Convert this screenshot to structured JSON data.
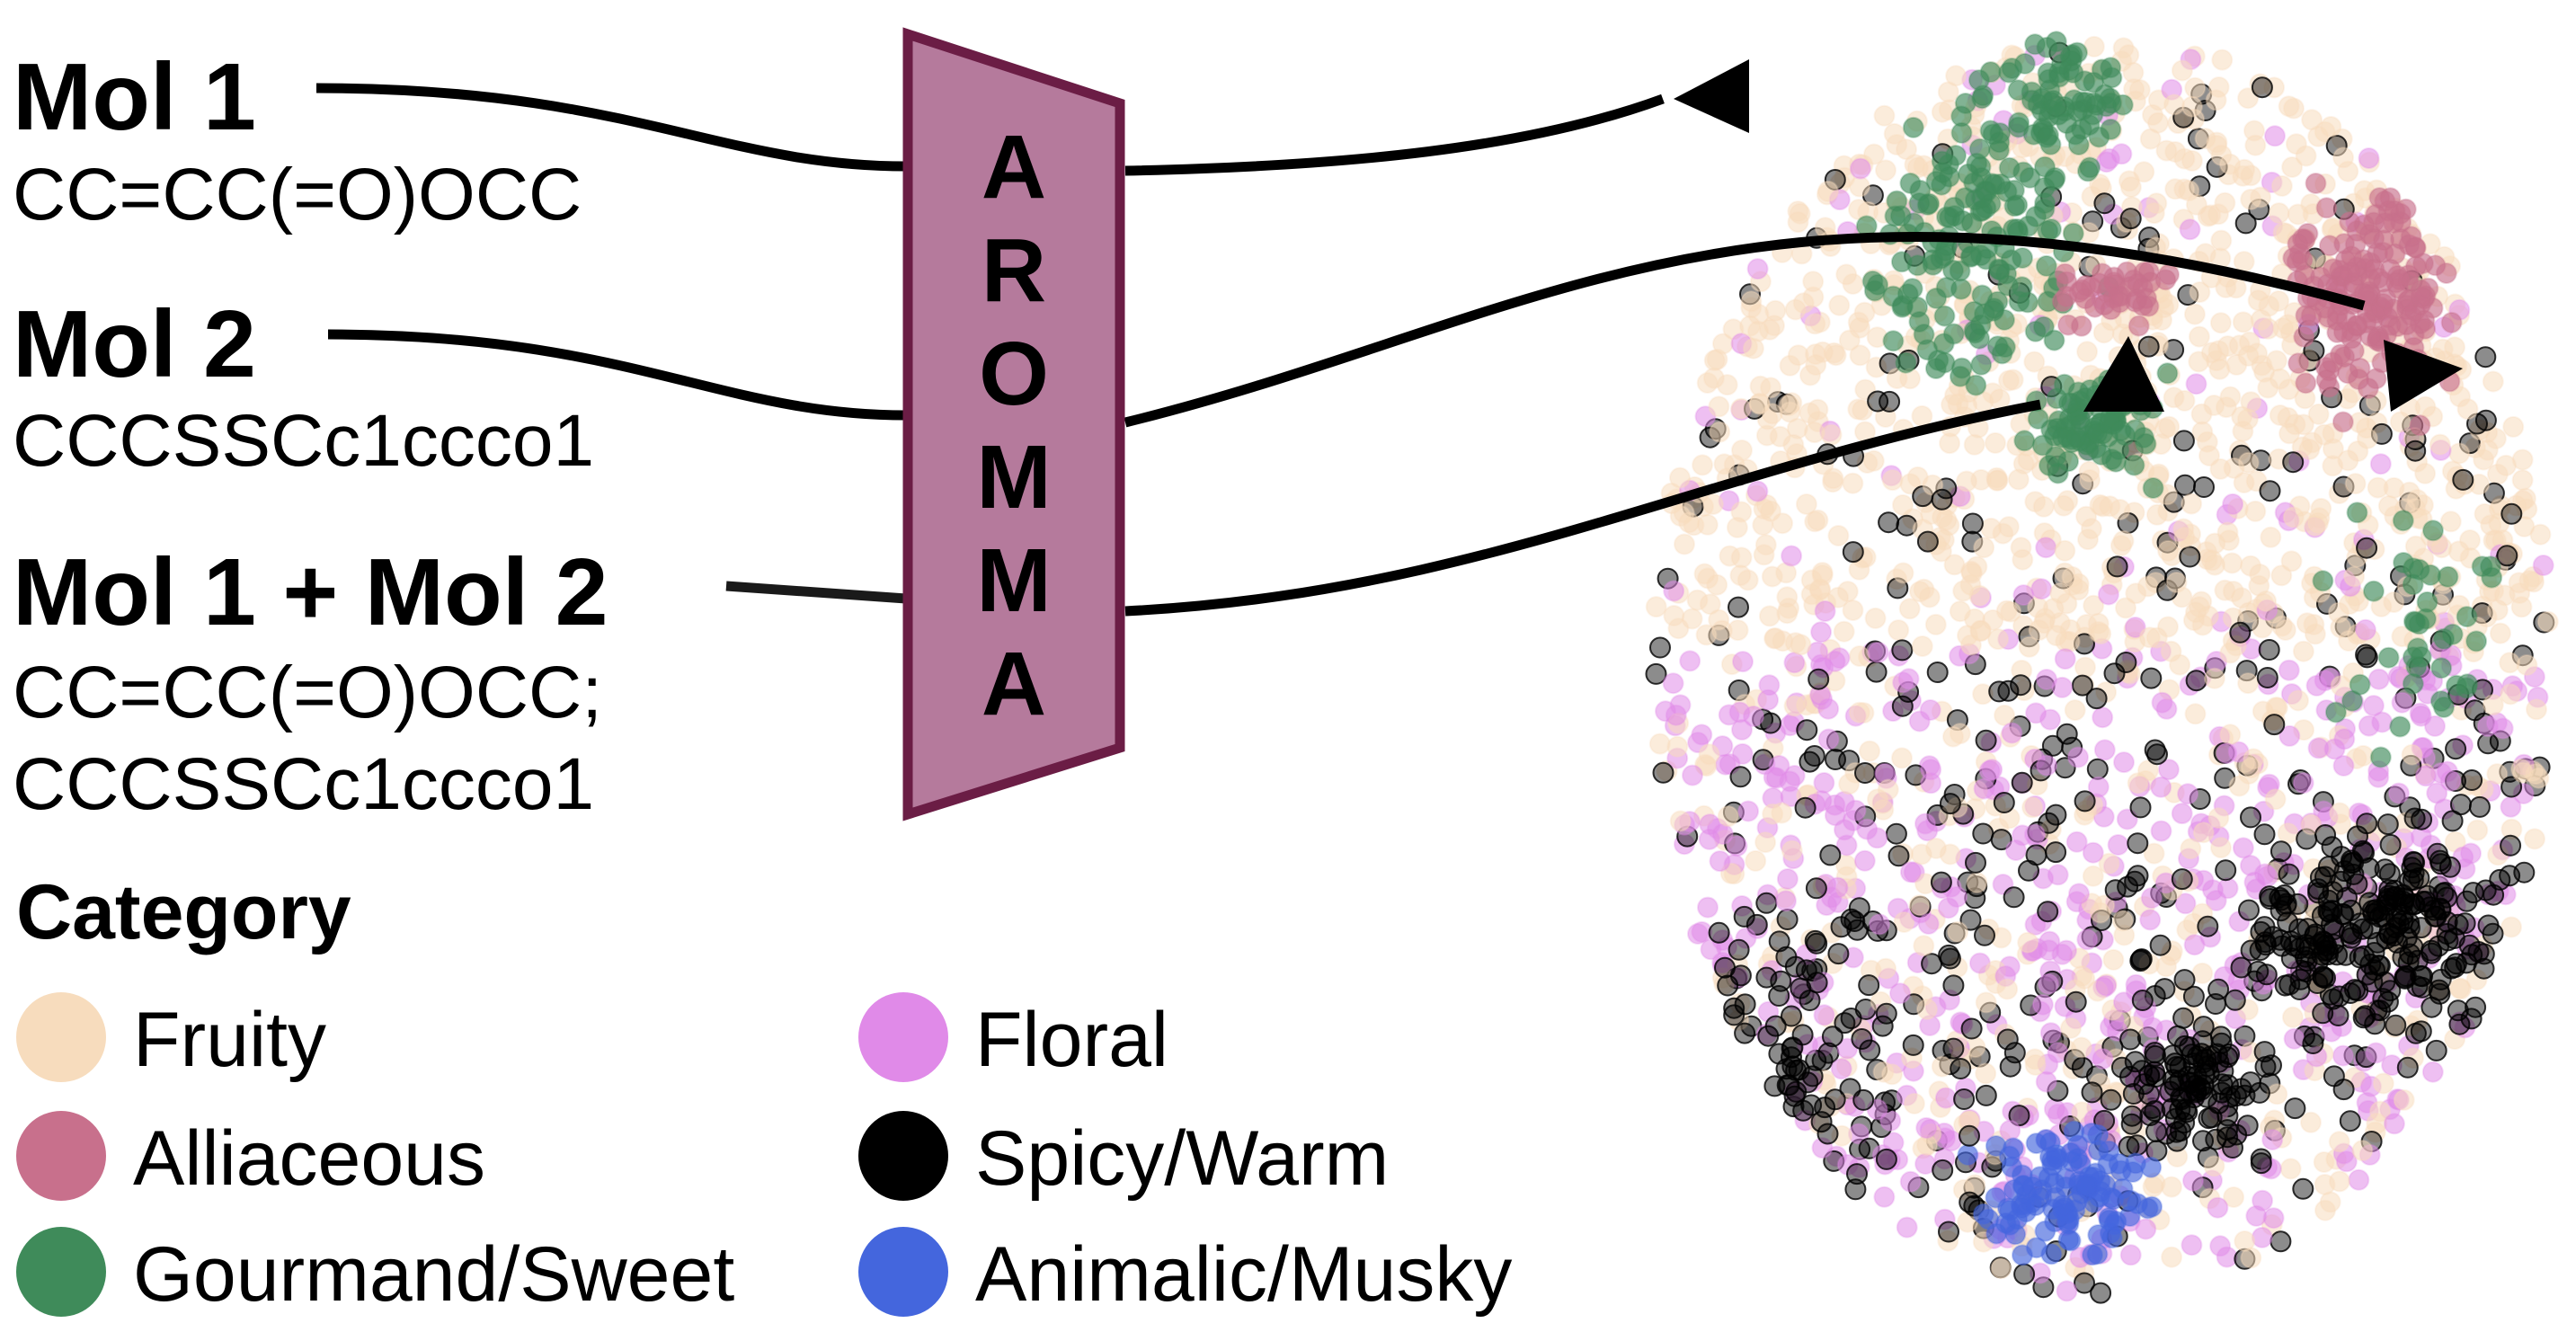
{
  "inputs": [
    {
      "name": "Mol 1",
      "smiles": [
        "CC=CC(=O)OCC"
      ]
    },
    {
      "name": "Mol 2",
      "smiles": [
        "CCCSSCc1ccco1"
      ]
    },
    {
      "name": "Mol 1 + Mol 2",
      "smiles": [
        "CC=CC(=O)OCC;",
        "CCCSSCc1ccco1"
      ]
    }
  ],
  "model": {
    "label": "AROMMA",
    "letters": [
      "A",
      "R",
      "O",
      "M",
      "M",
      "A"
    ],
    "fill": "#b57a9c",
    "stroke": "#6b1d45"
  },
  "legend": {
    "title": "Category",
    "items": [
      {
        "label": "Fruity",
        "color": "#f7dcbd"
      },
      {
        "label": "Floral",
        "color": "#e08ae8"
      },
      {
        "label": "Alliaceous",
        "color": "#c8708c"
      },
      {
        "label": "Spicy/Warm",
        "color": "#000000"
      },
      {
        "label": "Gourmand/Sweet",
        "color": "#3f8b5a"
      },
      {
        "label": "Animalic/Musky",
        "color": "#4466dd"
      }
    ]
  }
}
